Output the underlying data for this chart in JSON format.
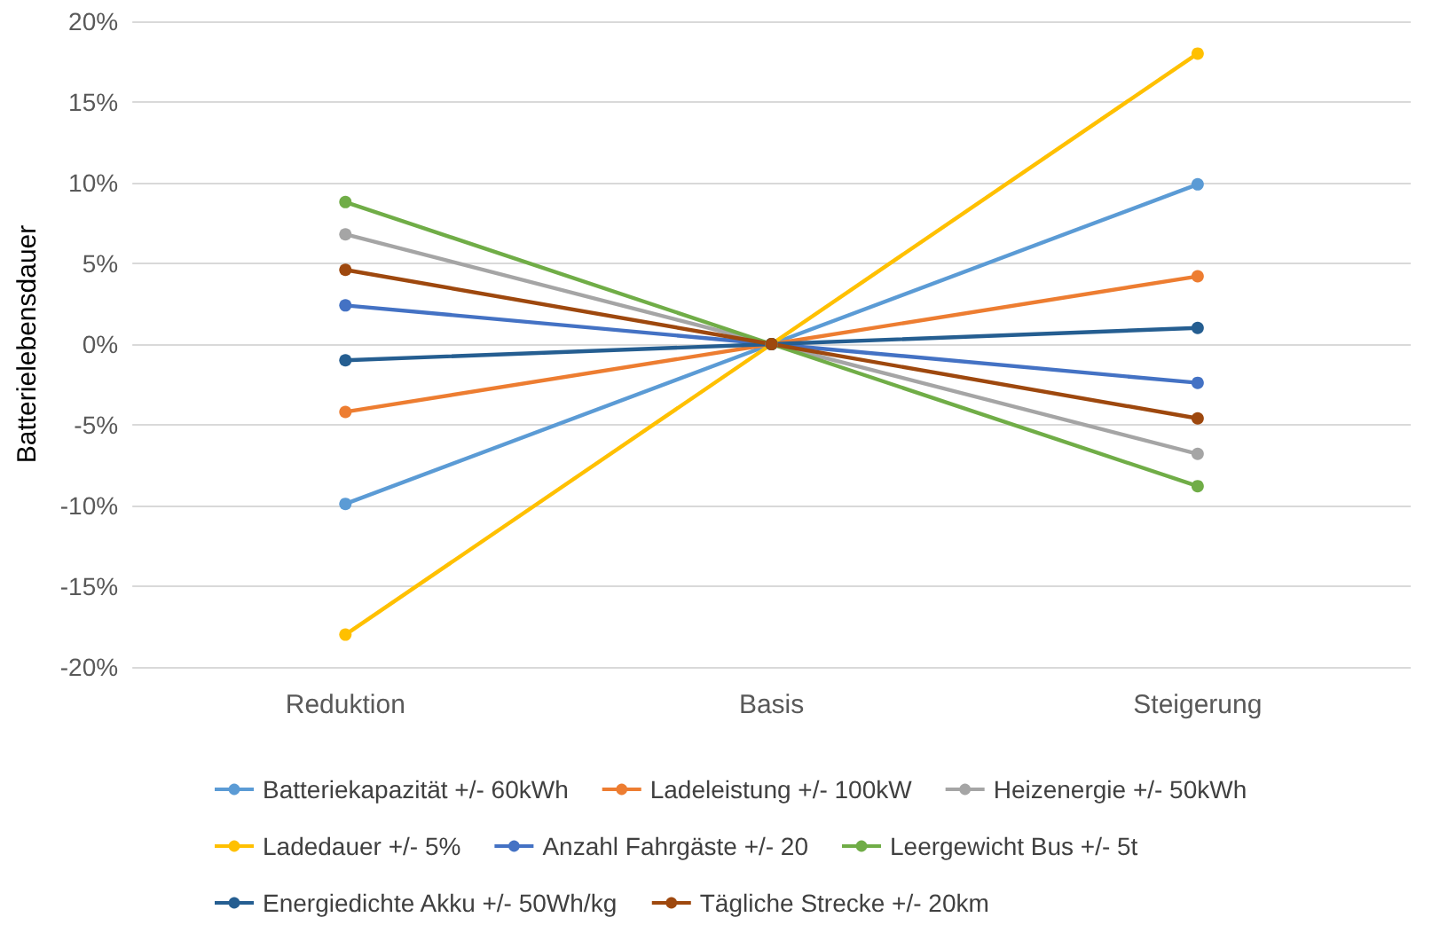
{
  "chart_data": {
    "type": "line",
    "ylabel": "Batterielebensdauer",
    "categories": [
      "Reduktion",
      "Basis",
      "Steigerung"
    ],
    "ylim": [
      -20,
      20
    ],
    "yticks": [
      {
        "value": -20,
        "label": "-20%"
      },
      {
        "value": -15,
        "label": "-15%"
      },
      {
        "value": -10,
        "label": "-10%"
      },
      {
        "value": -5,
        "label": "-5%"
      },
      {
        "value": 0,
        "label": "0%"
      },
      {
        "value": 5,
        "label": "5%"
      },
      {
        "value": 10,
        "label": "10%"
      },
      {
        "value": 15,
        "label": "15%"
      },
      {
        "value": 20,
        "label": "20%"
      }
    ],
    "grid": "y",
    "legend": "bottom",
    "marker": "circle",
    "line_style": "solid",
    "series": [
      {
        "name": "Batteriekapazität +/- 60kWh",
        "color": "#5b9bd5",
        "values": [
          -9.9,
          0,
          9.9
        ]
      },
      {
        "name": "Ladeleistung +/- 100kW",
        "color": "#ed7d31",
        "values": [
          -4.2,
          0,
          4.2
        ]
      },
      {
        "name": "Heizenergie +/- 50kWh",
        "color": "#a5a5a5",
        "values": [
          6.8,
          0,
          -6.8
        ]
      },
      {
        "name": "Ladedauer +/- 5%",
        "color": "#ffc000",
        "values": [
          -18,
          0,
          18
        ]
      },
      {
        "name": "Anzahl Fahrgäste +/- 20",
        "color": "#4472c4",
        "values": [
          2.4,
          0,
          -2.4
        ]
      },
      {
        "name": "Leergewicht Bus +/- 5t",
        "color": "#70ad47",
        "values": [
          8.8,
          0,
          -8.8
        ]
      },
      {
        "name": "Energiedichte Akku +/- 50Wh/kg",
        "color": "#255e91",
        "values": [
          -1.0,
          0,
          1.0
        ]
      },
      {
        "name": "Tägliche Strecke +/- 20km",
        "color": "#9e480e",
        "values": [
          4.6,
          0,
          -4.6
        ]
      }
    ]
  }
}
